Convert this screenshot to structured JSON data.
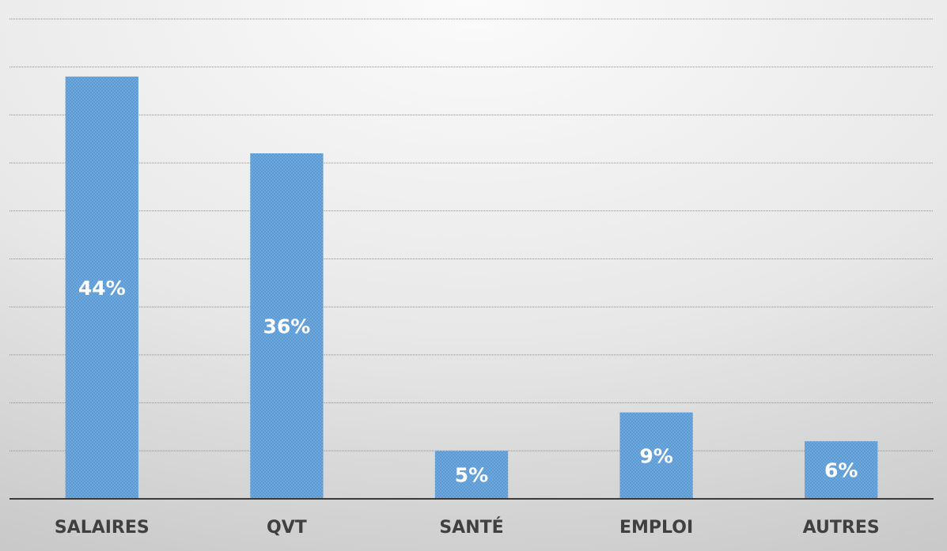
{
  "chart_data": {
    "type": "bar",
    "categories": [
      "SALAIRES",
      "QVT",
      "SANTÉ",
      "EMPLOI",
      "AUTRES"
    ],
    "values": [
      44,
      36,
      5,
      9,
      6
    ],
    "value_labels": [
      "44%",
      "36%",
      "5%",
      "9%",
      "6%"
    ],
    "color": "#5b9bd5",
    "ylim": [
      0,
      50
    ],
    "yticks": [
      0,
      5,
      10,
      15,
      20,
      25,
      30,
      35,
      40,
      45,
      50
    ],
    "grid": true
  }
}
